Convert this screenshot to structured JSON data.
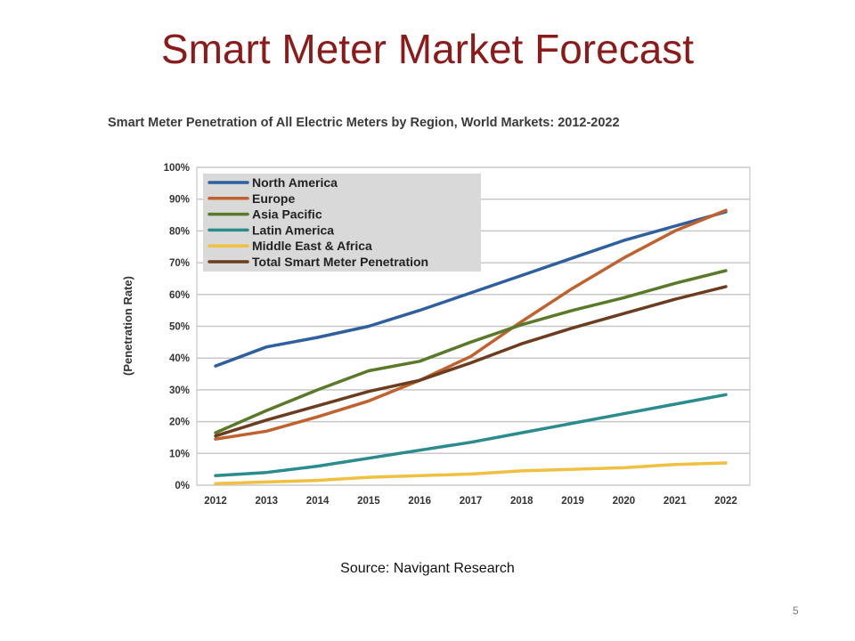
{
  "slide": {
    "title": "Smart Meter Market Forecast",
    "source": "Source:   Navigant Research",
    "page_number": "5"
  },
  "chart_data": {
    "type": "line",
    "title": "Smart Meter Penetration of All Electric Meters by Region, World Markets: 2012-2022",
    "xlabel": "",
    "ylabel": "(Penetration Rate)",
    "ylim": [
      0,
      100
    ],
    "y_ticks": [
      "0%",
      "10%",
      "20%",
      "30%",
      "40%",
      "50%",
      "60%",
      "70%",
      "80%",
      "90%",
      "100%"
    ],
    "categories": [
      "2012",
      "2013",
      "2014",
      "2015",
      "2016",
      "2017",
      "2018",
      "2019",
      "2020",
      "2021",
      "2022"
    ],
    "grid": true,
    "legend_position": "top-left",
    "series": [
      {
        "name": "North America",
        "color": "#2e5f9e",
        "values": [
          37.5,
          43.5,
          46.5,
          50,
          55,
          60.5,
          66,
          71.5,
          77,
          81.5,
          86
        ]
      },
      {
        "name": "Europe",
        "color": "#c0622e",
        "values": [
          14.5,
          17,
          21.5,
          26.5,
          33,
          40.5,
          51.5,
          62,
          71.5,
          80,
          86.5
        ]
      },
      {
        "name": "Asia Pacific",
        "color": "#5a7a2a",
        "values": [
          16.5,
          23.5,
          30,
          36,
          39,
          45,
          50.5,
          55,
          59,
          63.5,
          67.5
        ]
      },
      {
        "name": "Latin America",
        "color": "#2a8c8c",
        "values": [
          3,
          4,
          6,
          8.5,
          11,
          13.5,
          16.5,
          19.5,
          22.5,
          25.5,
          28.5
        ]
      },
      {
        "name": "Middle East & Africa",
        "color": "#f0c040",
        "values": [
          0.5,
          1,
          1.5,
          2.5,
          3,
          3.5,
          4.5,
          5,
          5.5,
          6.5,
          7
        ]
      },
      {
        "name": "Total Smart Meter Penetration",
        "color": "#6b3d1e",
        "values": [
          15.5,
          20.5,
          25,
          29.5,
          33,
          38.5,
          44.5,
          49.5,
          54,
          58.5,
          62.5
        ]
      }
    ]
  }
}
